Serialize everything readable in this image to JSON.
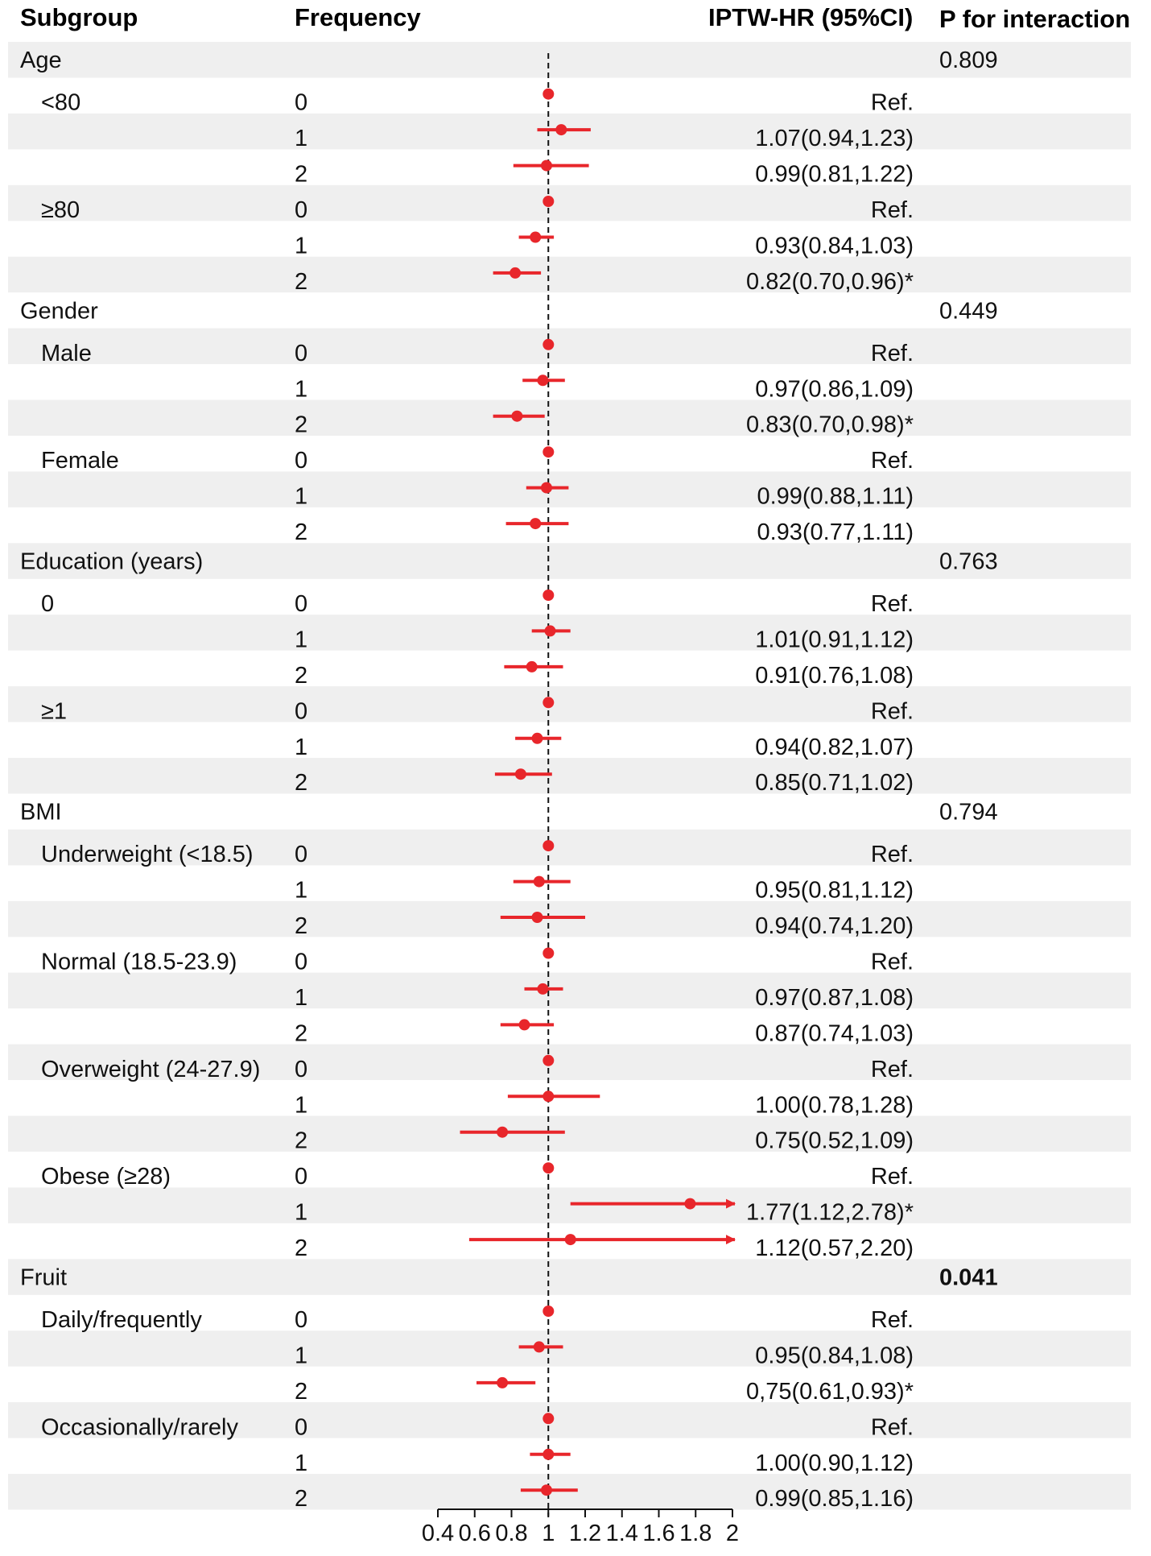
{
  "header": {
    "subgroup": "Subgroup",
    "frequency": "Frequency",
    "hr": "IPTW-HR (95%CI)",
    "p": "P for interaction"
  },
  "colors": {
    "marker": "#e8262b",
    "band": "#efefef",
    "text": "#111111"
  },
  "chart_data": {
    "type": "forest",
    "xlabel": "",
    "xlim": [
      0.4,
      2
    ],
    "reference_line": 1,
    "x_ticks": [
      0.4,
      0.6,
      0.8,
      1,
      1.2,
      1.4,
      1.6,
      1.8,
      2
    ],
    "x_tick_labels": [
      "0.4",
      "0.6",
      "0.8",
      "1",
      "1.2",
      "1.4",
      "1.6",
      "1.8",
      "2"
    ],
    "rows": [
      {
        "kind": "group",
        "label": "Age",
        "p": "0.809"
      },
      {
        "kind": "data",
        "sub": "<80",
        "freq": "0",
        "text": "Ref.",
        "hr": 1
      },
      {
        "kind": "data",
        "sub": "",
        "freq": "1",
        "text": "1.07(0.94,1.23)",
        "hr": 1.07,
        "lo": 0.94,
        "hi": 1.23
      },
      {
        "kind": "data",
        "sub": "",
        "freq": "2",
        "text": "0.99(0.81,1.22)",
        "hr": 0.99,
        "lo": 0.81,
        "hi": 1.22
      },
      {
        "kind": "data",
        "sub": "≥80",
        "freq": "0",
        "text": "Ref.",
        "hr": 1
      },
      {
        "kind": "data",
        "sub": "",
        "freq": "1",
        "text": "0.93(0.84,1.03)",
        "hr": 0.93,
        "lo": 0.84,
        "hi": 1.03
      },
      {
        "kind": "data",
        "sub": "",
        "freq": "2",
        "text": "0.82(0.70,0.96)*",
        "hr": 0.82,
        "lo": 0.7,
        "hi": 0.96
      },
      {
        "kind": "group",
        "label": "Gender",
        "p": "0.449"
      },
      {
        "kind": "data",
        "sub": "Male",
        "freq": "0",
        "text": "Ref.",
        "hr": 1
      },
      {
        "kind": "data",
        "sub": "",
        "freq": "1",
        "text": "0.97(0.86,1.09)",
        "hr": 0.97,
        "lo": 0.86,
        "hi": 1.09
      },
      {
        "kind": "data",
        "sub": "",
        "freq": "2",
        "text": "0.83(0.70,0.98)*",
        "hr": 0.83,
        "lo": 0.7,
        "hi": 0.98
      },
      {
        "kind": "data",
        "sub": "Female",
        "freq": "0",
        "text": "Ref.",
        "hr": 1
      },
      {
        "kind": "data",
        "sub": "",
        "freq": "1",
        "text": "0.99(0.88,1.11)",
        "hr": 0.99,
        "lo": 0.88,
        "hi": 1.11
      },
      {
        "kind": "data",
        "sub": "",
        "freq": "2",
        "text": "0.93(0.77,1.11)",
        "hr": 0.93,
        "lo": 0.77,
        "hi": 1.11
      },
      {
        "kind": "group",
        "label": "Education (years)",
        "p": "0.763"
      },
      {
        "kind": "data",
        "sub": "0",
        "freq": "0",
        "text": "Ref.",
        "hr": 1
      },
      {
        "kind": "data",
        "sub": "",
        "freq": "1",
        "text": "1.01(0.91,1.12)",
        "hr": 1.01,
        "lo": 0.91,
        "hi": 1.12
      },
      {
        "kind": "data",
        "sub": "",
        "freq": "2",
        "text": "0.91(0.76,1.08)",
        "hr": 0.91,
        "lo": 0.76,
        "hi": 1.08
      },
      {
        "kind": "data",
        "sub": "≥1",
        "freq": "0",
        "text": "Ref.",
        "hr": 1
      },
      {
        "kind": "data",
        "sub": "",
        "freq": "1",
        "text": "0.94(0.82,1.07)",
        "hr": 0.94,
        "lo": 0.82,
        "hi": 1.07
      },
      {
        "kind": "data",
        "sub": "",
        "freq": "2",
        "text": "0.85(0.71,1.02)",
        "hr": 0.85,
        "lo": 0.71,
        "hi": 1.02
      },
      {
        "kind": "group",
        "label": "BMI",
        "p": "0.794"
      },
      {
        "kind": "data",
        "sub": "Underweight (<18.5)",
        "freq": "0",
        "text": "Ref.",
        "hr": 1
      },
      {
        "kind": "data",
        "sub": "",
        "freq": "1",
        "text": "0.95(0.81,1.12)",
        "hr": 0.95,
        "lo": 0.81,
        "hi": 1.12
      },
      {
        "kind": "data",
        "sub": "",
        "freq": "2",
        "text": "0.94(0.74,1.20)",
        "hr": 0.94,
        "lo": 0.74,
        "hi": 1.2
      },
      {
        "kind": "data",
        "sub": "Normal (18.5-23.9)",
        "freq": "0",
        "text": "Ref.",
        "hr": 1
      },
      {
        "kind": "data",
        "sub": "",
        "freq": "1",
        "text": "0.97(0.87,1.08)",
        "hr": 0.97,
        "lo": 0.87,
        "hi": 1.08
      },
      {
        "kind": "data",
        "sub": "",
        "freq": "2",
        "text": "0.87(0.74,1.03)",
        "hr": 0.87,
        "lo": 0.74,
        "hi": 1.03
      },
      {
        "kind": "data",
        "sub": "Overweight (24-27.9)",
        "freq": "0",
        "text": "Ref.",
        "hr": 1
      },
      {
        "kind": "data",
        "sub": "",
        "freq": "1",
        "text": "1.00(0.78,1.28)",
        "hr": 1.0,
        "lo": 0.78,
        "hi": 1.28
      },
      {
        "kind": "data",
        "sub": "",
        "freq": "2",
        "text": "0.75(0.52,1.09)",
        "hr": 0.75,
        "lo": 0.52,
        "hi": 1.09
      },
      {
        "kind": "data",
        "sub": "Obese (≥28)",
        "freq": "0",
        "text": "Ref.",
        "hr": 1
      },
      {
        "kind": "data",
        "sub": "",
        "freq": "1",
        "text": "1.77(1.12,2.78)*",
        "hr": 1.77,
        "lo": 1.12,
        "hi": 2.78
      },
      {
        "kind": "data",
        "sub": "",
        "freq": "2",
        "text": "1.12(0.57,2.20)",
        "hr": 1.12,
        "lo": 0.57,
        "hi": 2.2
      },
      {
        "kind": "group",
        "label": "Fruit",
        "p": "0.041",
        "p_bold": true
      },
      {
        "kind": "data",
        "sub": "Daily/frequently",
        "freq": "0",
        "text": "Ref.",
        "hr": 1
      },
      {
        "kind": "data",
        "sub": "",
        "freq": "1",
        "text": "0.95(0.84,1.08)",
        "hr": 0.95,
        "lo": 0.84,
        "hi": 1.08
      },
      {
        "kind": "data",
        "sub": "",
        "freq": "2",
        "text": "0,75(0.61,0.93)*",
        "hr": 0.75,
        "lo": 0.61,
        "hi": 0.93
      },
      {
        "kind": "data",
        "sub": "Occasionally/rarely",
        "freq": "0",
        "text": "Ref.",
        "hr": 1
      },
      {
        "kind": "data",
        "sub": "",
        "freq": "1",
        "text": "1.00(0.90,1.12)",
        "hr": 1.0,
        "lo": 0.9,
        "hi": 1.12
      },
      {
        "kind": "data",
        "sub": "",
        "freq": "2",
        "text": "0.99(0.85,1.16)",
        "hr": 0.99,
        "lo": 0.85,
        "hi": 1.16
      }
    ]
  }
}
